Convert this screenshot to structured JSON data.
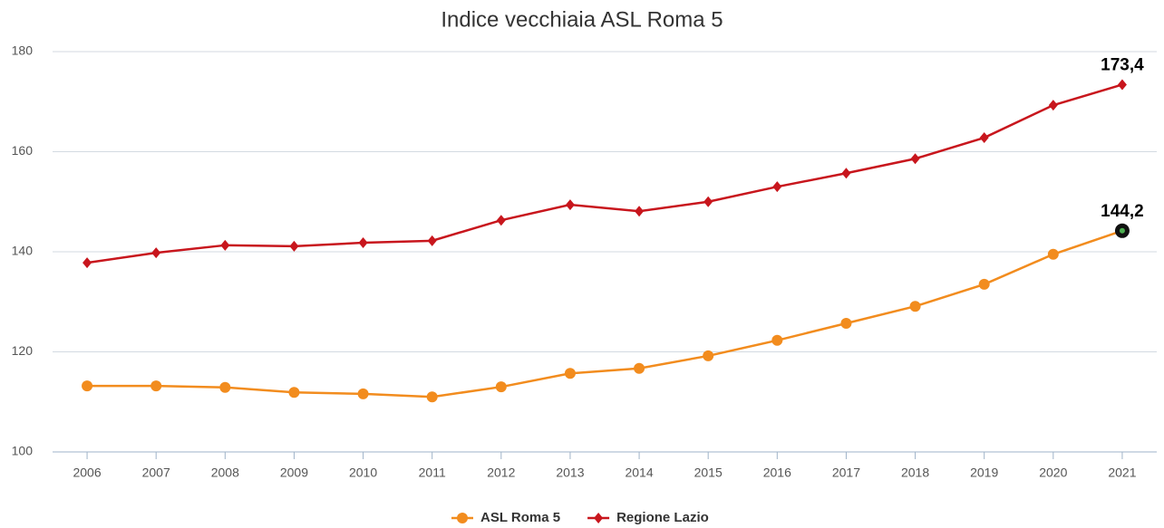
{
  "chart_data": {
    "type": "line",
    "title": "Indice vecchiaia ASL Roma 5",
    "categories": [
      "2006",
      "2007",
      "2008",
      "2009",
      "2010",
      "2011",
      "2012",
      "2013",
      "2014",
      "2015",
      "2016",
      "2017",
      "2018",
      "2019",
      "2020",
      "2021"
    ],
    "series": [
      {
        "name": "ASL Roma 5",
        "color": "#f28c1e",
        "marker": "circle",
        "values": [
          113.2,
          113.2,
          112.9,
          111.9,
          111.6,
          111.0,
          113.0,
          115.7,
          116.7,
          119.2,
          122.3,
          125.7,
          129.1,
          133.5,
          139.5,
          144.2
        ],
        "value_labels": [
          null,
          null,
          null,
          null,
          null,
          null,
          null,
          null,
          null,
          null,
          null,
          null,
          null,
          null,
          null,
          "144,2"
        ]
      },
      {
        "name": "Regione Lazio",
        "color": "#c8161d",
        "marker": "diamond",
        "values": [
          137.8,
          139.8,
          141.3,
          141.1,
          141.8,
          142.2,
          146.3,
          149.4,
          148.1,
          150.0,
          153.0,
          155.7,
          158.6,
          162.8,
          169.3,
          173.4
        ],
        "value_labels": [
          null,
          null,
          null,
          null,
          null,
          null,
          null,
          null,
          null,
          null,
          null,
          null,
          null,
          null,
          null,
          "173,4"
        ]
      }
    ],
    "ylim": [
      100,
      180
    ],
    "yticks": [
      100,
      120,
      140,
      160,
      180
    ],
    "grid": true,
    "legend": "bottom"
  }
}
